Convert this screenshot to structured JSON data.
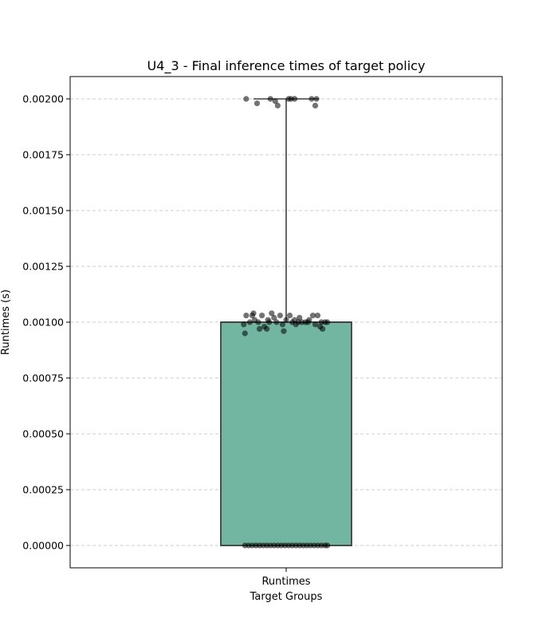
{
  "chart_data": {
    "type": "box",
    "title": "U4_3 - Final inference times of target policy",
    "xlabel": "Target Groups",
    "ylabel": "Runtimes (s)",
    "categories": [
      "Runtimes"
    ],
    "ylim": [
      -0.0001,
      0.0021
    ],
    "yticks": [
      "0.00000",
      "0.00025",
      "0.00050",
      "0.00075",
      "0.00100",
      "0.00125",
      "0.00150",
      "0.00175",
      "0.00200"
    ],
    "grid": "y-dashed",
    "box": {
      "category": "Runtimes",
      "whisker_low": 0.0,
      "q1": 0.0,
      "median": 0.001,
      "q3": 0.001,
      "whisker_high": 0.002
    },
    "colors": {
      "box_fill": "#72b6a1",
      "box_edge": "#3f3f3f",
      "points": "#000000",
      "grid": "#cccccc"
    },
    "points": [
      {
        "jitter": -0.33,
        "y": 0.002
      },
      {
        "jitter": -0.24,
        "y": 0.00198
      },
      {
        "jitter": -0.13,
        "y": 0.002
      },
      {
        "jitter": -0.09,
        "y": 0.00199
      },
      {
        "jitter": -0.07,
        "y": 0.00197
      },
      {
        "jitter": 0.02,
        "y": 0.002
      },
      {
        "jitter": 0.04,
        "y": 0.002
      },
      {
        "jitter": 0.07,
        "y": 0.002
      },
      {
        "jitter": 0.21,
        "y": 0.002
      },
      {
        "jitter": 0.25,
        "y": 0.002
      },
      {
        "jitter": 0.24,
        "y": 0.00197
      },
      {
        "jitter": -0.35,
        "y": 0.00099
      },
      {
        "jitter": -0.33,
        "y": 0.00103
      },
      {
        "jitter": -0.3,
        "y": 0.001
      },
      {
        "jitter": -0.27,
        "y": 0.00104
      },
      {
        "jitter": -0.26,
        "y": 0.00101
      },
      {
        "jitter": -0.23,
        "y": 0.001
      },
      {
        "jitter": -0.2,
        "y": 0.00103
      },
      {
        "jitter": -0.18,
        "y": 0.00098
      },
      {
        "jitter": -0.15,
        "y": 0.00101
      },
      {
        "jitter": -0.12,
        "y": 0.00104
      },
      {
        "jitter": -0.1,
        "y": 0.00102
      },
      {
        "jitter": -0.08,
        "y": 0.001
      },
      {
        "jitter": -0.05,
        "y": 0.00103
      },
      {
        "jitter": -0.03,
        "y": 0.00099
      },
      {
        "jitter": 0.0,
        "y": 0.00101
      },
      {
        "jitter": 0.03,
        "y": 0.00103
      },
      {
        "jitter": 0.05,
        "y": 0.001
      },
      {
        "jitter": 0.08,
        "y": 0.00099
      },
      {
        "jitter": 0.11,
        "y": 0.00102
      },
      {
        "jitter": 0.13,
        "y": 0.001
      },
      {
        "jitter": 0.16,
        "y": 0.001
      },
      {
        "jitter": 0.19,
        "y": 0.00101
      },
      {
        "jitter": 0.22,
        "y": 0.00103
      },
      {
        "jitter": 0.24,
        "y": 0.00099
      },
      {
        "jitter": 0.26,
        "y": 0.00103
      },
      {
        "jitter": 0.28,
        "y": 0.00098
      },
      {
        "jitter": 0.3,
        "y": 0.00097
      },
      {
        "jitter": 0.32,
        "y": 0.001
      },
      {
        "jitter": 0.34,
        "y": 0.001
      },
      {
        "jitter": -0.34,
        "y": 0.00095
      },
      {
        "jitter": -0.22,
        "y": 0.00097
      },
      {
        "jitter": -0.16,
        "y": 0.00097
      },
      {
        "jitter": -0.02,
        "y": 0.00096
      },
      {
        "jitter": 0.07,
        "y": 0.00101
      },
      {
        "jitter": 0.18,
        "y": 0.001
      },
      {
        "jitter": -0.28,
        "y": 0.00103
      },
      {
        "jitter": -0.14,
        "y": 0.001
      },
      {
        "jitter": 0.1,
        "y": 0.001
      },
      {
        "jitter": 0.29,
        "y": 0.001
      },
      {
        "jitter": -0.34,
        "y": 0.0
      },
      {
        "jitter": -0.31,
        "y": 0.0
      },
      {
        "jitter": -0.28,
        "y": 0.0
      },
      {
        "jitter": -0.25,
        "y": 0.0
      },
      {
        "jitter": -0.22,
        "y": 0.0
      },
      {
        "jitter": -0.19,
        "y": 0.0
      },
      {
        "jitter": -0.16,
        "y": 0.0
      },
      {
        "jitter": -0.13,
        "y": 0.0
      },
      {
        "jitter": -0.1,
        "y": 0.0
      },
      {
        "jitter": -0.07,
        "y": 0.0
      },
      {
        "jitter": -0.04,
        "y": 0.0
      },
      {
        "jitter": -0.01,
        "y": 0.0
      },
      {
        "jitter": 0.02,
        "y": 0.0
      },
      {
        "jitter": 0.05,
        "y": 0.0
      },
      {
        "jitter": 0.08,
        "y": 0.0
      },
      {
        "jitter": 0.11,
        "y": 0.0
      },
      {
        "jitter": 0.14,
        "y": 0.0
      },
      {
        "jitter": 0.17,
        "y": 0.0
      },
      {
        "jitter": 0.2,
        "y": 0.0
      },
      {
        "jitter": 0.23,
        "y": 0.0
      },
      {
        "jitter": 0.26,
        "y": 0.0
      },
      {
        "jitter": 0.29,
        "y": 0.0
      },
      {
        "jitter": 0.32,
        "y": 0.0
      },
      {
        "jitter": 0.34,
        "y": 0.0
      }
    ]
  }
}
